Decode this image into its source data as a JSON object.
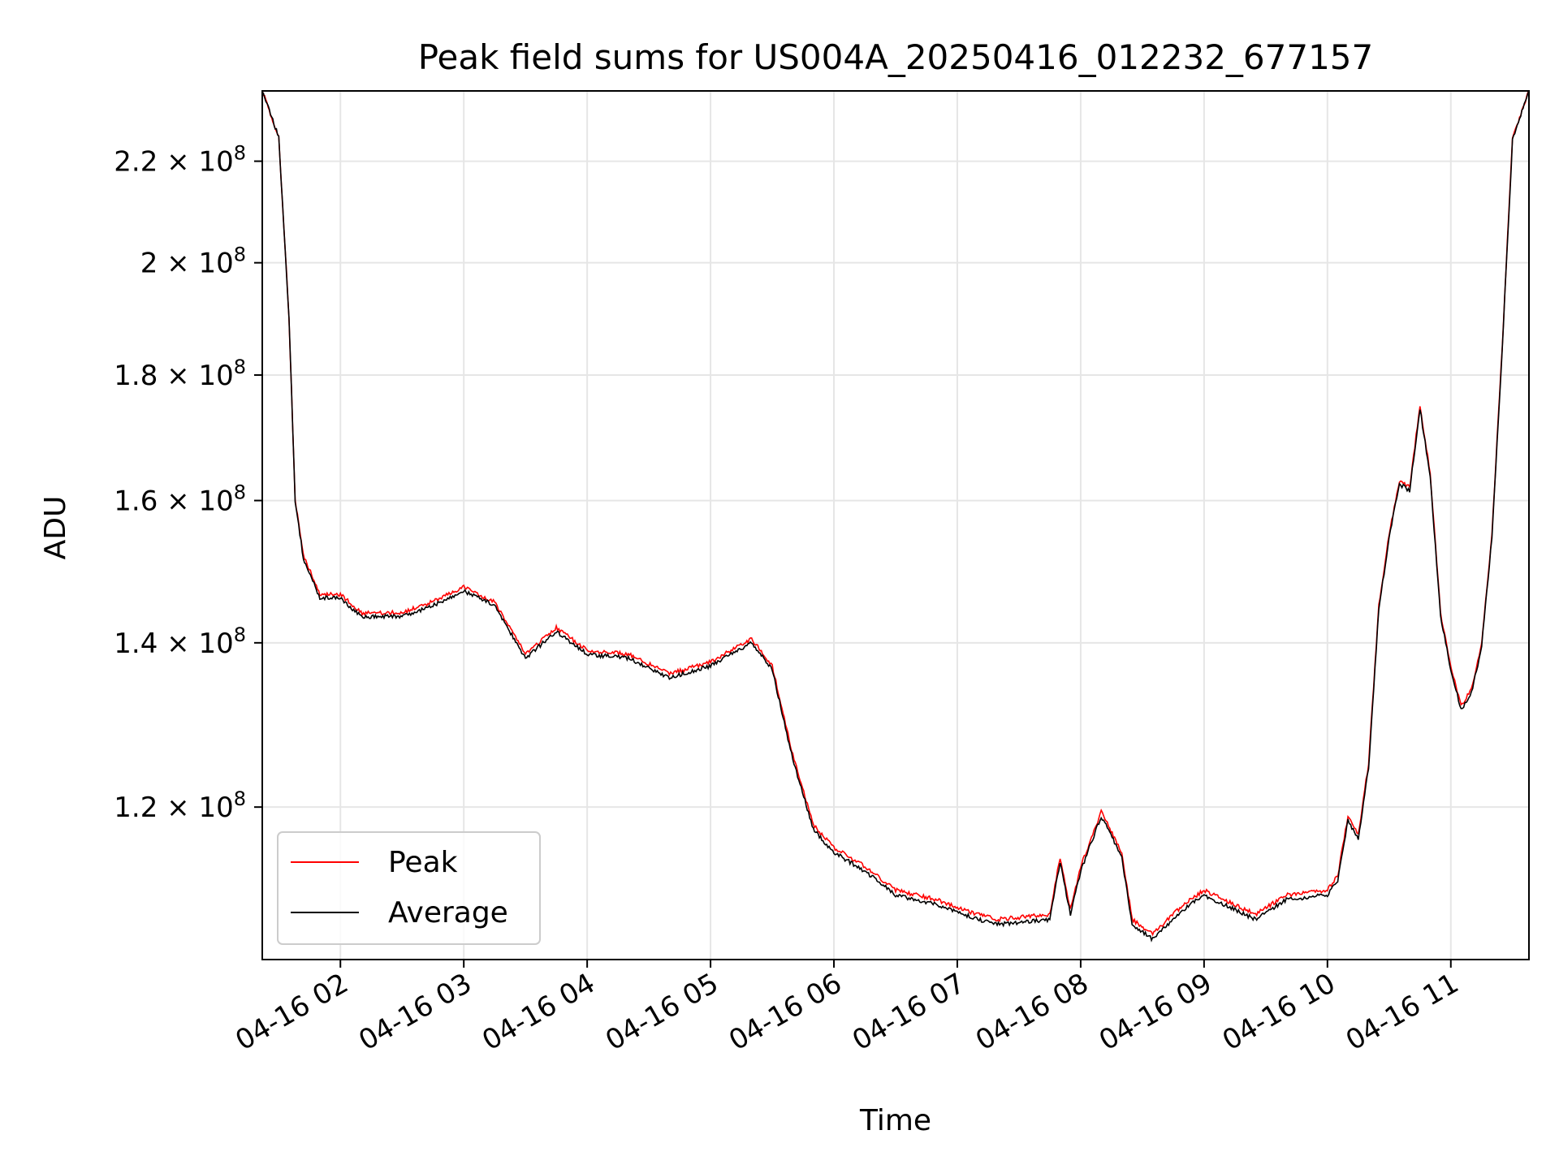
{
  "chart_data": {
    "type": "line",
    "title": "Peak field sums for US004A_20250416_012232_677157",
    "xlabel": "Time",
    "ylabel": "ADU",
    "y_scale": "log",
    "ylim": [
      104000000,
      235000000
    ],
    "xlim": [
      "04-16 01:22",
      "04-16 11:38"
    ],
    "grid": true,
    "legend_position": "lower-left",
    "x_ticks": [
      {
        "t": "04-16 02:00",
        "label": "04-16 02"
      },
      {
        "t": "04-16 03:00",
        "label": "04-16 03"
      },
      {
        "t": "04-16 04:00",
        "label": "04-16 04"
      },
      {
        "t": "04-16 05:00",
        "label": "04-16 05"
      },
      {
        "t": "04-16 06:00",
        "label": "04-16 06"
      },
      {
        "t": "04-16 07:00",
        "label": "04-16 07"
      },
      {
        "t": "04-16 08:00",
        "label": "04-16 08"
      },
      {
        "t": "04-16 09:00",
        "label": "04-16 09"
      },
      {
        "t": "04-16 10:00",
        "label": "04-16 10"
      },
      {
        "t": "04-16 11:00",
        "label": "04-16 11"
      }
    ],
    "y_ticks": [
      {
        "value": 120000000,
        "mantissa": "1.2",
        "base": "10",
        "exp": "8"
      },
      {
        "value": 140000000,
        "mantissa": "1.4",
        "base": "10",
        "exp": "8"
      },
      {
        "value": 160000000,
        "mantissa": "1.6",
        "base": "10",
        "exp": "8"
      },
      {
        "value": 180000000,
        "mantissa": "1.8",
        "base": "10",
        "exp": "8"
      },
      {
        "value": 200000000,
        "mantissa": "2",
        "base": "10",
        "exp": "8"
      },
      {
        "value": 220000000,
        "mantissa": "2.2",
        "base": "10",
        "exp": "8"
      }
    ],
    "series": [
      {
        "name": "Peak",
        "color": "#ff0000",
        "points": [
          [
            "04-16 01:22",
            235000000
          ],
          [
            "04-16 01:30",
            225000000
          ],
          [
            "04-16 01:35",
            190000000
          ],
          [
            "04-16 01:38",
            160000000
          ],
          [
            "04-16 01:42",
            152000000
          ],
          [
            "04-16 01:50",
            146500000
          ],
          [
            "04-16 02:00",
            146500000
          ],
          [
            "04-16 02:10",
            144000000
          ],
          [
            "04-16 02:30",
            144000000
          ],
          [
            "04-16 02:45",
            145500000
          ],
          [
            "04-16 03:00",
            147500000
          ],
          [
            "04-16 03:15",
            145500000
          ],
          [
            "04-16 03:30",
            138500000
          ],
          [
            "04-16 03:45",
            142000000
          ],
          [
            "04-16 04:00",
            139000000
          ],
          [
            "04-16 04:20",
            138500000
          ],
          [
            "04-16 04:40",
            136000000
          ],
          [
            "04-16 05:00",
            137500000
          ],
          [
            "04-16 05:20",
            140500000
          ],
          [
            "04-16 05:30",
            137000000
          ],
          [
            "04-16 05:40",
            126000000
          ],
          [
            "04-16 05:50",
            118000000
          ],
          [
            "04-16 06:00",
            115500000
          ],
          [
            "04-16 06:15",
            113500000
          ],
          [
            "04-16 06:30",
            111000000
          ],
          [
            "04-16 06:50",
            110000000
          ],
          [
            "04-16 07:10",
            108500000
          ],
          [
            "04-16 07:20",
            108000000
          ],
          [
            "04-16 07:45",
            108500000
          ],
          [
            "04-16 07:50",
            114500000
          ],
          [
            "04-16 07:55",
            109000000
          ],
          [
            "04-16 08:00",
            113500000
          ],
          [
            "04-16 08:10",
            119500000
          ],
          [
            "04-16 08:20",
            115000000
          ],
          [
            "04-16 08:25",
            108000000
          ],
          [
            "04-16 08:35",
            106500000
          ],
          [
            "04-16 08:50",
            109500000
          ],
          [
            "04-16 09:00",
            111000000
          ],
          [
            "04-16 09:15",
            109500000
          ],
          [
            "04-16 09:25",
            108500000
          ],
          [
            "04-16 09:40",
            110500000
          ],
          [
            "04-16 10:00",
            111000000
          ],
          [
            "04-16 10:05",
            112500000
          ],
          [
            "04-16 10:10",
            119000000
          ],
          [
            "04-16 10:15",
            117000000
          ],
          [
            "04-16 10:20",
            125000000
          ],
          [
            "04-16 10:25",
            145000000
          ],
          [
            "04-16 10:30",
            155000000
          ],
          [
            "04-16 10:35",
            163000000
          ],
          [
            "04-16 10:40",
            162000000
          ],
          [
            "04-16 10:45",
            175000000
          ],
          [
            "04-16 10:50",
            164000000
          ],
          [
            "04-16 10:55",
            144000000
          ],
          [
            "04-16 11:00",
            137000000
          ],
          [
            "04-16 11:05",
            132000000
          ],
          [
            "04-16 11:10",
            134000000
          ],
          [
            "04-16 11:15",
            140000000
          ],
          [
            "04-16 11:20",
            155000000
          ],
          [
            "04-16 11:25",
            185000000
          ],
          [
            "04-16 11:30",
            225000000
          ],
          [
            "04-16 11:38",
            235000000
          ]
        ]
      },
      {
        "name": "Average",
        "color": "#000000",
        "points": [
          [
            "04-16 01:22",
            235000000
          ],
          [
            "04-16 01:30",
            225000000
          ],
          [
            "04-16 01:35",
            190000000
          ],
          [
            "04-16 01:38",
            160000000
          ],
          [
            "04-16 01:42",
            151500000
          ],
          [
            "04-16 01:50",
            146000000
          ],
          [
            "04-16 02:00",
            146000000
          ],
          [
            "04-16 02:10",
            143500000
          ],
          [
            "04-16 02:30",
            143500000
          ],
          [
            "04-16 02:45",
            145000000
          ],
          [
            "04-16 03:00",
            147000000
          ],
          [
            "04-16 03:15",
            145000000
          ],
          [
            "04-16 03:30",
            138000000
          ],
          [
            "04-16 03:45",
            141500000
          ],
          [
            "04-16 04:00",
            138500000
          ],
          [
            "04-16 04:20",
            138000000
          ],
          [
            "04-16 04:40",
            135500000
          ],
          [
            "04-16 05:00",
            137000000
          ],
          [
            "04-16 05:20",
            140000000
          ],
          [
            "04-16 05:30",
            136500000
          ],
          [
            "04-16 05:40",
            125500000
          ],
          [
            "04-16 05:50",
            117500000
          ],
          [
            "04-16 06:00",
            115000000
          ],
          [
            "04-16 06:15",
            113000000
          ],
          [
            "04-16 06:30",
            110500000
          ],
          [
            "04-16 06:50",
            109500000
          ],
          [
            "04-16 07:10",
            108000000
          ],
          [
            "04-16 07:20",
            107500000
          ],
          [
            "04-16 07:45",
            108000000
          ],
          [
            "04-16 07:50",
            114000000
          ],
          [
            "04-16 07:55",
            108500000
          ],
          [
            "04-16 08:00",
            113000000
          ],
          [
            "04-16 08:10",
            119000000
          ],
          [
            "04-16 08:20",
            114500000
          ],
          [
            "04-16 08:25",
            107500000
          ],
          [
            "04-16 08:35",
            106000000
          ],
          [
            "04-16 08:50",
            109000000
          ],
          [
            "04-16 09:00",
            110500000
          ],
          [
            "04-16 09:15",
            109000000
          ],
          [
            "04-16 09:25",
            108000000
          ],
          [
            "04-16 09:40",
            110000000
          ],
          [
            "04-16 10:00",
            110500000
          ],
          [
            "04-16 10:05",
            112000000
          ],
          [
            "04-16 10:10",
            118500000
          ],
          [
            "04-16 10:15",
            116500000
          ],
          [
            "04-16 10:20",
            124500000
          ],
          [
            "04-16 10:25",
            144500000
          ],
          [
            "04-16 10:30",
            154500000
          ],
          [
            "04-16 10:35",
            162500000
          ],
          [
            "04-16 10:40",
            161500000
          ],
          [
            "04-16 10:45",
            174500000
          ],
          [
            "04-16 10:50",
            163500000
          ],
          [
            "04-16 10:55",
            143500000
          ],
          [
            "04-16 11:00",
            136500000
          ],
          [
            "04-16 11:05",
            131500000
          ],
          [
            "04-16 11:10",
            133500000
          ],
          [
            "04-16 11:15",
            139500000
          ],
          [
            "04-16 11:20",
            154500000
          ],
          [
            "04-16 11:25",
            184500000
          ],
          [
            "04-16 11:30",
            224500000
          ],
          [
            "04-16 11:38",
            235000000
          ]
        ]
      }
    ]
  }
}
